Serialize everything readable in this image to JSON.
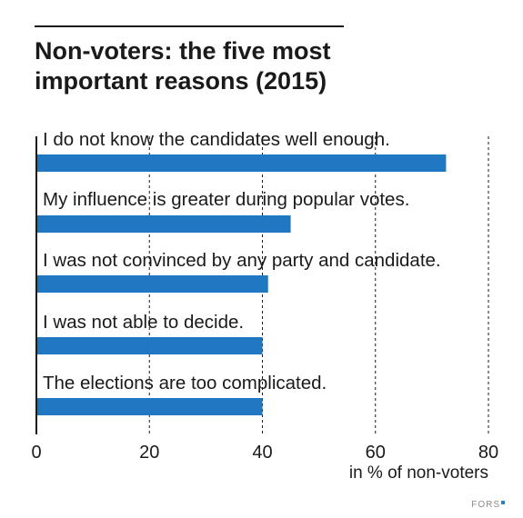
{
  "title_lines": [
    "Non-voters: the five most",
    "important reasons (2015)"
  ],
  "brand": "FORS",
  "colors": {
    "bar": "#1f78c1",
    "grid": "#1a1a1a"
  },
  "chart_data": {
    "type": "bar",
    "orientation": "horizontal",
    "title": "Non-voters: the five most important reasons (2015)",
    "categories": [
      "I do not know the candidates well enough.",
      "My influence is greater during popular votes.",
      "I was not convinced by any party and candidate.",
      "I was not able to decide.",
      "The elections are too complicated."
    ],
    "values": [
      72.5,
      45,
      41,
      40,
      40
    ],
    "xlabel": "in % of non-voters",
    "xlim": [
      0,
      80
    ],
    "xticks": [
      0,
      20,
      40,
      60,
      80
    ],
    "grid": "dashed vertical",
    "bar_color": "#1f78c1"
  }
}
